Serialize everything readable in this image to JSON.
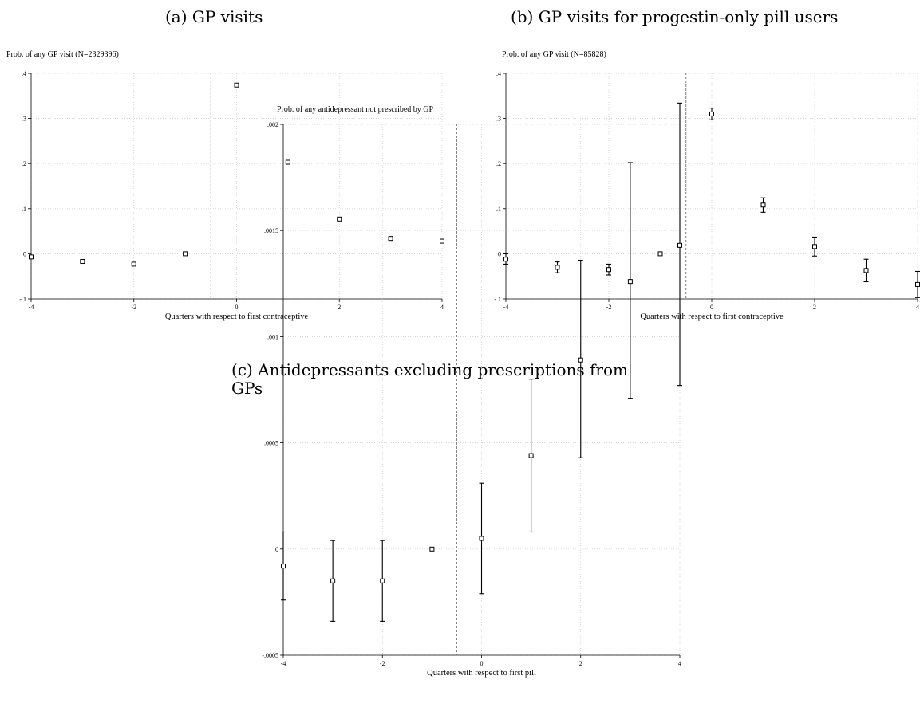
{
  "captions": {
    "a": "(a) GP visits",
    "b": "(b) GP visits for progestin-only pill users",
    "c": "(c) Antidepressants excluding prescriptions from\nGPs"
  },
  "chart_data": [
    {
      "type": "scatter",
      "panel": "a",
      "title": "Prob. of any GP visit (N=2329396)",
      "xlabel": "Quarters with respect to first contraceptive",
      "xlim": [
        -4,
        4
      ],
      "ylim": [
        -0.1,
        0.4
      ],
      "xticks": [
        -4,
        -2,
        0,
        2,
        4
      ],
      "xtick_labels": [
        "-4",
        "-2",
        "0",
        "2",
        "4"
      ],
      "yticks": [
        -0.1,
        0,
        0.1,
        0.2,
        0.3,
        0.4
      ],
      "ytick_labels": [
        "-.1",
        "0",
        ".1",
        ".2",
        ".3",
        ".4"
      ],
      "grid": true,
      "reference_line_x": -0.5,
      "x": [
        -4,
        -3,
        -2,
        -1,
        0,
        1,
        2,
        3,
        4
      ],
      "y": [
        -0.007,
        -0.017,
        -0.023,
        0.0,
        0.374,
        0.203,
        0.077,
        0.034,
        0.028
      ],
      "ci_low": [
        -0.009,
        -0.019,
        -0.025,
        0.0,
        0.372,
        0.201,
        0.075,
        0.031,
        0.024
      ],
      "ci_high": [
        -0.005,
        -0.015,
        -0.021,
        0.0,
        0.376,
        0.205,
        0.079,
        0.037,
        0.032
      ]
    },
    {
      "type": "scatter",
      "panel": "b",
      "title": "Prob. of any GP visit (N=85828)",
      "xlabel": "Quarters with respect to first contraceptive",
      "xlim": [
        -4,
        4
      ],
      "ylim": [
        -0.1,
        0.4
      ],
      "xticks": [
        -4,
        -2,
        0,
        2,
        4
      ],
      "xtick_labels": [
        "-4",
        "-2",
        "0",
        "2",
        "4"
      ],
      "yticks": [
        -0.1,
        0,
        0.1,
        0.2,
        0.3,
        0.4
      ],
      "ytick_labels": [
        "-.1",
        "0",
        ".1",
        ".2",
        ".3",
        ".4"
      ],
      "grid": true,
      "reference_line_x": -0.5,
      "x": [
        -4,
        -3,
        -2,
        -1,
        0,
        1,
        2,
        3,
        4
      ],
      "y": [
        -0.012,
        -0.03,
        -0.035,
        0.0,
        0.31,
        0.108,
        0.016,
        -0.037,
        -0.068
      ],
      "ci_low": [
        -0.023,
        -0.042,
        -0.047,
        0.0,
        0.297,
        0.092,
        -0.005,
        -0.062,
        -0.097
      ],
      "ci_high": [
        0.0,
        -0.018,
        -0.023,
        0.0,
        0.323,
        0.124,
        0.037,
        -0.012,
        -0.039
      ]
    },
    {
      "type": "scatter",
      "panel": "c",
      "title": "Prob. of any antidepressant not prescribed by GP",
      "xlabel": "Quarters with respect to first pill",
      "xlim": [
        -4,
        4
      ],
      "ylim": [
        -0.0005,
        0.002
      ],
      "xticks": [
        -4,
        -2,
        0,
        2,
        4
      ],
      "xtick_labels": [
        "-4",
        "-2",
        "0",
        "2",
        "4"
      ],
      "yticks": [
        -0.0005,
        0,
        0.0005,
        0.001,
        0.0015,
        0.002
      ],
      "ytick_labels": [
        "-.0005",
        "0",
        ".0005",
        ".001",
        ".0015",
        ".002"
      ],
      "grid": true,
      "reference_line_x": -0.5,
      "x": [
        -4,
        -3,
        -2,
        -1,
        0,
        1,
        2,
        3,
        4
      ],
      "y": [
        -8e-05,
        -0.00015,
        -0.00015,
        0.0,
        5e-05,
        0.00044,
        0.00089,
        0.00126,
        0.00143
      ],
      "ci_low": [
        -0.00024,
        -0.00034,
        -0.00034,
        0.0,
        -0.00021,
        8e-05,
        0.00043,
        0.00071,
        0.00077
      ],
      "ci_high": [
        8e-05,
        4e-05,
        4e-05,
        0.0,
        0.00031,
        0.0008,
        0.00136,
        0.00182,
        0.0021
      ]
    }
  ]
}
